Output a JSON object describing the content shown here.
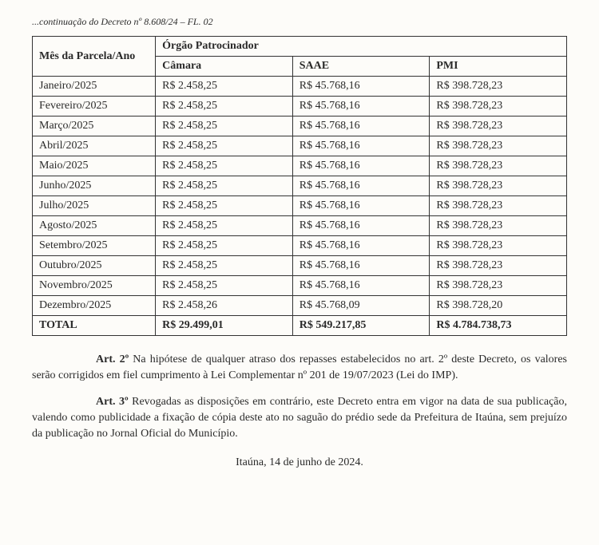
{
  "continuation": "...continuação do Decreto nº 8.608/24 – FL. 02",
  "table": {
    "header_month": "Mês da Parcela/Ano",
    "header_group": "Órgão Patrocinador",
    "columns": [
      "Câmara",
      "SAAE",
      "PMI"
    ],
    "rows": [
      {
        "month": "Janeiro/2025",
        "camara": "R$ 2.458,25",
        "saae": "R$ 45.768,16",
        "pmi": "R$ 398.728,23"
      },
      {
        "month": "Fevereiro/2025",
        "camara": "R$ 2.458,25",
        "saae": "R$ 45.768,16",
        "pmi": "R$ 398.728,23"
      },
      {
        "month": "Março/2025",
        "camara": "R$ 2.458,25",
        "saae": "R$ 45.768,16",
        "pmi": "R$ 398.728,23"
      },
      {
        "month": "Abril/2025",
        "camara": "R$ 2.458,25",
        "saae": "R$ 45.768,16",
        "pmi": "R$ 398.728,23"
      },
      {
        "month": "Maio/2025",
        "camara": "R$ 2.458,25",
        "saae": "R$ 45.768,16",
        "pmi": "R$ 398.728,23"
      },
      {
        "month": "Junho/2025",
        "camara": "R$ 2.458,25",
        "saae": "R$ 45.768,16",
        "pmi": "R$ 398.728,23"
      },
      {
        "month": "Julho/2025",
        "camara": "R$ 2.458,25",
        "saae": "R$ 45.768,16",
        "pmi": "R$ 398.728,23"
      },
      {
        "month": "Agosto/2025",
        "camara": "R$ 2.458,25",
        "saae": "R$ 45.768,16",
        "pmi": "R$ 398.728,23"
      },
      {
        "month": "Setembro/2025",
        "camara": "R$ 2.458,25",
        "saae": "R$ 45.768,16",
        "pmi": "R$ 398.728,23"
      },
      {
        "month": "Outubro/2025",
        "camara": "R$ 2.458,25",
        "saae": "R$ 45.768,16",
        "pmi": "R$ 398.728,23"
      },
      {
        "month": "Novembro/2025",
        "camara": "R$ 2.458,25",
        "saae": "R$ 45.768,16",
        "pmi": "R$ 398.728,23"
      },
      {
        "month": "Dezembro/2025",
        "camara": "R$ 2.458,26",
        "saae": "R$ 45.768,09",
        "pmi": "R$ 398.728,20"
      }
    ],
    "total": {
      "label": "TOTAL",
      "camara": "R$ 29.499,01",
      "saae": "R$ 549.217,85",
      "pmi": "R$ 4.784.738,73"
    }
  },
  "articles": {
    "art2_label": "Art. 2º",
    "art2_text": " Na hipótese de qualquer atraso dos repasses estabelecidos no art. 2º deste Decreto, os valores serão corrigidos em fiel cumprimento à Lei Complementar nº 201 de 19/07/2023 (Lei do IMP).",
    "art3_label": "Art. 3º",
    "art3_text": " Revogadas as disposições em contrário, este Decreto entra em vigor na data de sua publicação, valendo como publicidade a fixação de cópia deste ato no saguão do prédio sede da Prefeitura de Itaúna, sem prejuízo da publicação no Jornal Oficial do Município."
  },
  "sign_location": "Itaúna, 14 de junho de 2024."
}
